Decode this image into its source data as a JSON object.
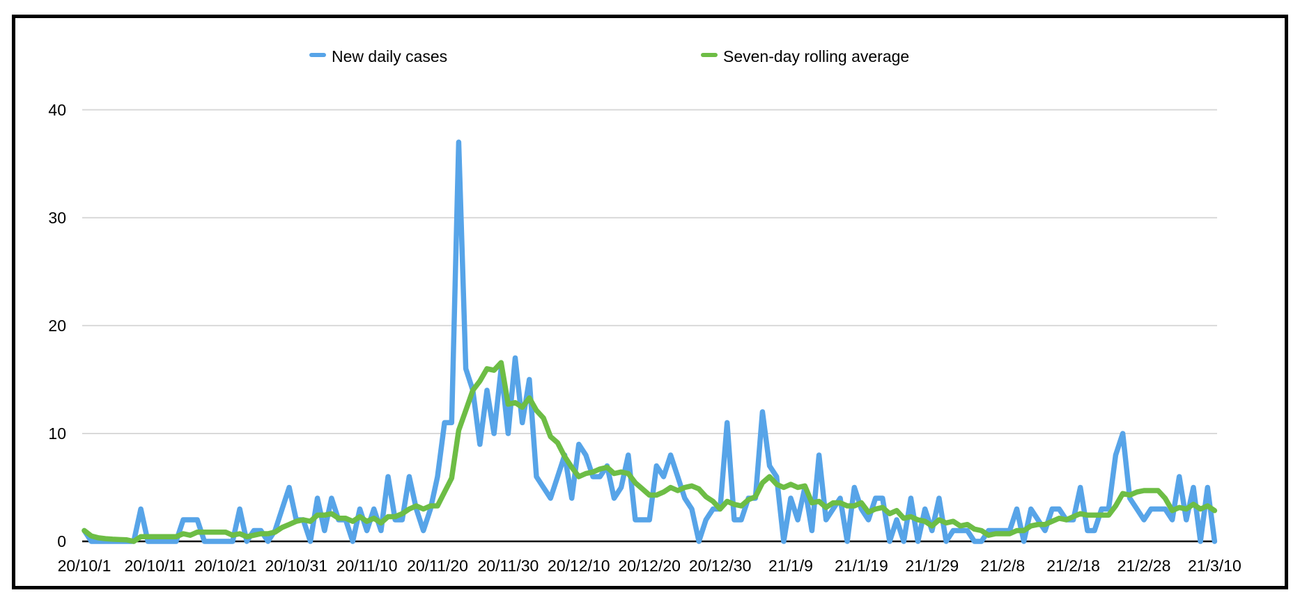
{
  "legend": [
    {
      "label": "New daily cases",
      "color": "#57a4e8"
    },
    {
      "label": "Seven-day rolling average",
      "color": "#6dbd45"
    }
  ],
  "colors": {
    "background": "#ffffff",
    "frame_border": "#000000",
    "gridline": "#d9d9d9",
    "axis_line": "#000000",
    "tick_text": "#000000"
  },
  "chart_data": {
    "type": "line",
    "title": "",
    "xlabel": "",
    "ylabel": "",
    "grid": "horizontal-only",
    "legend_position": "top",
    "y_ticks": [
      0,
      10,
      20,
      30,
      40
    ],
    "ylim": [
      0,
      43
    ],
    "x_tick_labels": [
      "20/10/1",
      "20/10/11",
      "20/10/21",
      "20/10/31",
      "20/11/10",
      "20/11/20",
      "20/11/30",
      "20/12/10",
      "20/12/20",
      "20/12/30",
      "21/1/9",
      "21/1/19",
      "21/1/29",
      "21/2/8",
      "21/2/18",
      "21/2/28",
      "21/3/10"
    ],
    "x_tick_day_indices": [
      0,
      10,
      20,
      30,
      40,
      50,
      60,
      70,
      80,
      90,
      100,
      110,
      120,
      130,
      140,
      150,
      160
    ],
    "x_range_days": 161,
    "x_start_label": "20/10/1",
    "x_end_label": "21/3/10",
    "series": [
      {
        "name": "New daily cases",
        "color": "#57a4e8",
        "values": [
          1,
          0,
          0,
          0,
          0,
          0,
          0,
          0,
          3,
          0,
          0,
          0,
          0,
          0,
          2,
          2,
          2,
          0,
          0,
          0,
          0,
          0,
          3,
          0,
          1,
          1,
          0,
          1,
          3,
          5,
          2,
          2,
          0,
          4,
          1,
          4,
          2,
          2,
          0,
          3,
          1,
          3,
          1,
          6,
          2,
          2,
          6,
          3,
          1,
          3,
          6,
          11,
          11,
          37,
          16,
          14,
          9,
          14,
          10,
          16,
          10,
          17,
          11,
          15,
          6,
          5,
          4,
          6,
          8,
          4,
          9,
          8,
          6,
          6,
          7,
          4,
          5,
          8,
          2,
          2,
          2,
          7,
          6,
          8,
          6,
          4,
          3,
          0,
          2,
          3,
          3,
          11,
          2,
          2,
          4,
          4,
          12,
          7,
          6,
          0,
          4,
          2,
          5,
          1,
          8,
          2,
          3,
          4,
          0,
          5,
          3,
          2,
          4,
          4,
          0,
          2,
          0,
          4,
          0,
          3,
          1,
          4,
          0,
          1,
          1,
          1,
          0,
          0,
          1,
          1,
          1,
          1,
          3,
          0,
          3,
          2,
          1,
          3,
          3,
          2,
          2,
          5,
          1,
          1,
          3,
          3,
          8,
          10,
          4,
          3,
          2,
          3,
          3,
          3,
          2,
          6,
          2,
          5,
          0,
          5,
          0
        ]
      },
      {
        "name": "Seven-day rolling average",
        "color": "#6dbd45",
        "derived": "trailing 7-day mean of New daily cases",
        "values": [
          1,
          0.5,
          0.33,
          0.25,
          0.2,
          0.17,
          0.14,
          0,
          0.43,
          0.43,
          0.43,
          0.43,
          0.43,
          0.43,
          0.71,
          0.57,
          0.86,
          0.86,
          0.86,
          0.86,
          0.86,
          0.57,
          0.71,
          0.43,
          0.57,
          0.71,
          0.71,
          0.86,
          1.29,
          1.57,
          1.86,
          2,
          1.86,
          2.43,
          2.43,
          2.57,
          2.14,
          2.14,
          1.86,
          2.29,
          1.86,
          2.14,
          1.71,
          2.29,
          2.29,
          2.57,
          3,
          3.29,
          3,
          3.29,
          3.29,
          4.57,
          5.86,
          10.29,
          12.14,
          14,
          14.86,
          16,
          15.86,
          16.57,
          12.71,
          12.86,
          12.43,
          13.29,
          12.14,
          11.43,
          9.71,
          9.14,
          7.86,
          6.86,
          6,
          6.29,
          6.43,
          6.71,
          6.86,
          6.29,
          6.43,
          6.29,
          5.43,
          4.86,
          4.29,
          4.29,
          4.57,
          5,
          4.71,
          5,
          5.14,
          4.86,
          4.14,
          3.71,
          3,
          3.71,
          3.43,
          3.29,
          3.86,
          4.14,
          5.43,
          6,
          5.29,
          5,
          5.29,
          5,
          5.14,
          3.57,
          3.71,
          3.14,
          3.57,
          3.57,
          3.29,
          3.29,
          3.57,
          2.71,
          3,
          3.14,
          2.57,
          2.86,
          2.14,
          2.29,
          2,
          1.86,
          1.43,
          2,
          1.71,
          1.86,
          1.43,
          1.57,
          1.14,
          1,
          0.57,
          0.71,
          0.71,
          0.71,
          1,
          1,
          1.43,
          1.57,
          1.57,
          1.86,
          2.14,
          2,
          2.29,
          2.57,
          2.43,
          2.43,
          2.43,
          2.43,
          3.29,
          4.43,
          4.29,
          4.57,
          4.71,
          4.71,
          4.71,
          4,
          2.86,
          3.14,
          3,
          3.43,
          3,
          3.29,
          2.86
        ]
      }
    ]
  }
}
